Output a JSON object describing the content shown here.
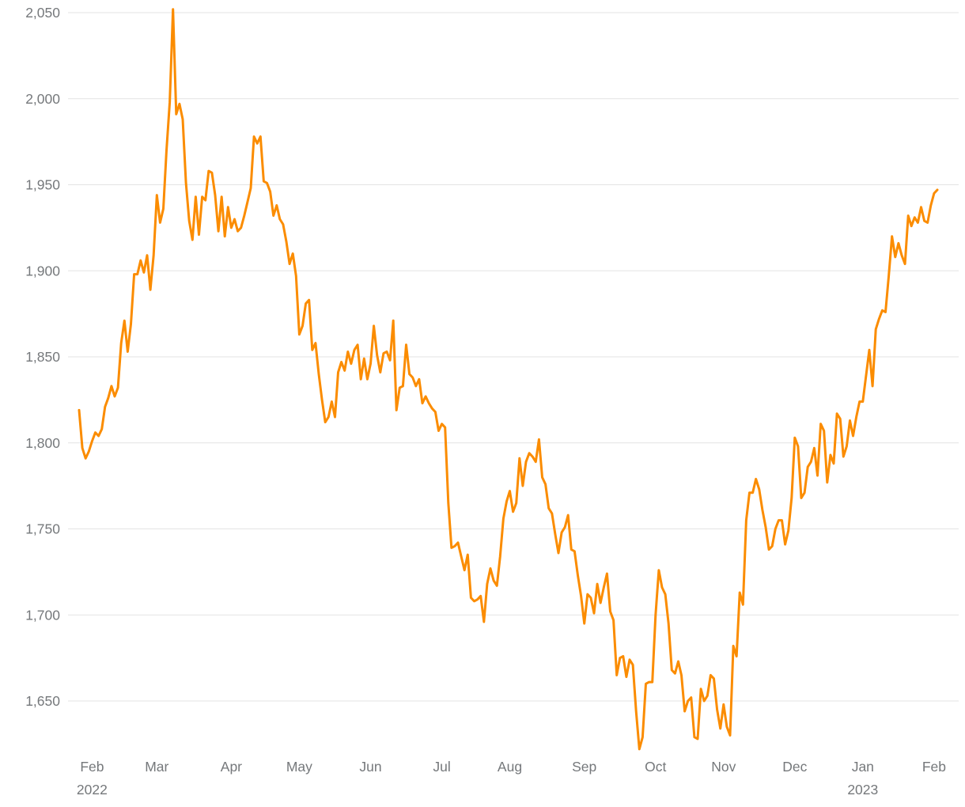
{
  "page": {
    "background": "#ffffff"
  },
  "chart_data": {
    "type": "line",
    "title": "",
    "xlabel": "",
    "ylabel": "",
    "grid": true,
    "legend": "none",
    "y_axis_range": [
      1650,
      2050
    ],
    "y_tick_interval": 50,
    "colors": {
      "line": "#fb8c00",
      "grid": "#e3e3e3",
      "axis_text": "#75787b",
      "background": "#ffffff"
    },
    "y_ticks": [
      {
        "label": "2,050",
        "value": 2050
      },
      {
        "label": "2,000",
        "value": 2000
      },
      {
        "label": "1,950",
        "value": 1950
      },
      {
        "label": "1,900",
        "value": 1900
      },
      {
        "label": "1,850",
        "value": 1850
      },
      {
        "label": "1,800",
        "value": 1800
      },
      {
        "label": "1,750",
        "value": 1750
      },
      {
        "label": "1,700",
        "value": 1700
      },
      {
        "label": "1,650",
        "value": 1650
      }
    ],
    "x_ticks": [
      {
        "label": "Feb",
        "sublabel": "2022",
        "index": 4
      },
      {
        "label": "Mar",
        "index": 24
      },
      {
        "label": "Apr",
        "index": 47
      },
      {
        "label": "May",
        "index": 68
      },
      {
        "label": "Jun",
        "index": 90
      },
      {
        "label": "Jul",
        "index": 112
      },
      {
        "label": "Aug",
        "index": 133
      },
      {
        "label": "Sep",
        "index": 156
      },
      {
        "label": "Oct",
        "index": 178
      },
      {
        "label": "Nov",
        "index": 199
      },
      {
        "label": "Dec",
        "index": 221
      },
      {
        "label": "Jan",
        "sublabel": "2023",
        "index": 242
      },
      {
        "label": "Feb",
        "index": 264
      }
    ],
    "values": [
      1819,
      1797,
      1791,
      1795,
      1801,
      1806,
      1804,
      1808,
      1821,
      1826,
      1833,
      1827,
      1832,
      1858,
      1871,
      1853,
      1869,
      1898,
      1898,
      1906,
      1899,
      1909,
      1889,
      1909,
      1944,
      1928,
      1936,
      1970,
      1998,
      2052,
      1991,
      1997,
      1988,
      1951,
      1929,
      1918,
      1943,
      1921,
      1943,
      1941,
      1958,
      1957,
      1944,
      1923,
      1943,
      1920,
      1937,
      1925,
      1930,
      1923,
      1925,
      1932,
      1940,
      1948,
      1978,
      1974,
      1978,
      1952,
      1951,
      1946,
      1932,
      1938,
      1930,
      1927,
      1917,
      1904,
      1910,
      1897,
      1863,
      1868,
      1881,
      1883,
      1854,
      1858,
      1840,
      1825,
      1812,
      1815,
      1824,
      1815,
      1841,
      1847,
      1842,
      1853,
      1846,
      1854,
      1857,
      1837,
      1849,
      1837,
      1846,
      1868,
      1851,
      1841,
      1852,
      1853,
      1848,
      1871,
      1819,
      1832,
      1833,
      1857,
      1840,
      1838,
      1833,
      1837,
      1823,
      1827,
      1823,
      1820,
      1818,
      1807,
      1811,
      1809,
      1765,
      1739,
      1740,
      1742,
      1734,
      1726,
      1735,
      1710,
      1708,
      1709,
      1711,
      1696,
      1718,
      1727,
      1720,
      1717,
      1734,
      1756,
      1766,
      1772,
      1760,
      1765,
      1791,
      1775,
      1789,
      1794,
      1792,
      1789,
      1802,
      1780,
      1776,
      1762,
      1759,
      1747,
      1736,
      1748,
      1751,
      1758,
      1738,
      1737,
      1723,
      1711,
      1695,
      1712,
      1710,
      1701,
      1718,
      1707,
      1716,
      1724,
      1702,
      1697,
      1665,
      1675,
      1676,
      1664,
      1674,
      1671,
      1644,
      1622,
      1629,
      1660,
      1661,
      1661,
      1700,
      1726,
      1716,
      1712,
      1695,
      1668,
      1666,
      1673,
      1665,
      1644,
      1650,
      1652,
      1629,
      1628,
      1657,
      1650,
      1653,
      1665,
      1663,
      1645,
      1634,
      1648,
      1635,
      1630,
      1682,
      1676,
      1713,
      1706,
      1755,
      1771,
      1771,
      1779,
      1773,
      1761,
      1751,
      1738,
      1740,
      1750,
      1755,
      1755,
      1741,
      1749,
      1768,
      1803,
      1798,
      1768,
      1771,
      1786,
      1789,
      1797,
      1781,
      1811,
      1807,
      1777,
      1793,
      1788,
      1817,
      1814,
      1792,
      1798,
      1813,
      1804,
      1815,
      1824,
      1824,
      1839,
      1854,
      1833,
      1866,
      1872,
      1877,
      1876,
      1897,
      1920,
      1908,
      1916,
      1909,
      1904,
      1932,
      1926,
      1931,
      1928,
      1937,
      1929,
      1928,
      1938,
      1945,
      1947
    ]
  }
}
